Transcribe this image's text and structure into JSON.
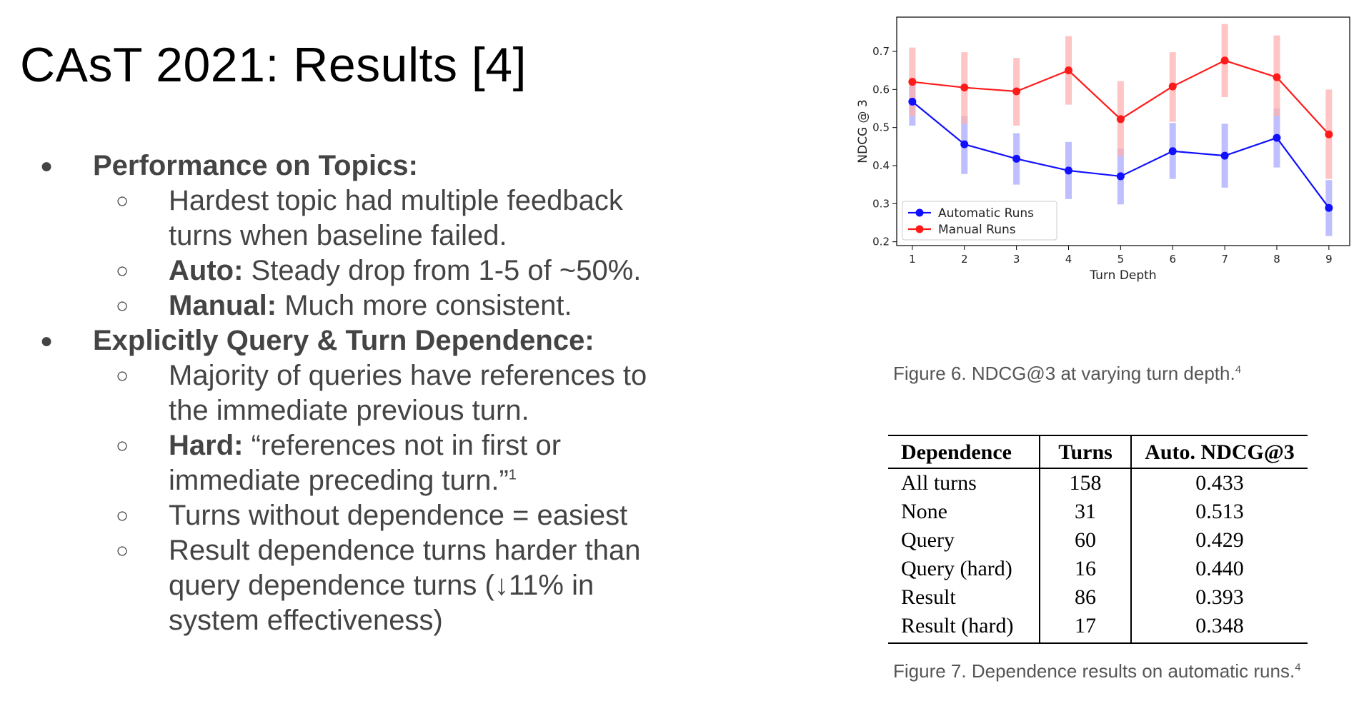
{
  "title": "CAsT 2021: Results [4]",
  "bullets": [
    {
      "heading": "Performance on Topics:",
      "marker": "●",
      "items": [
        {
          "bold": "",
          "text": "Hardest topic had multiple feedback turns when baseline failed.",
          "lines": [
            "Hardest topic had multiple feedback",
            "turns when baseline failed."
          ],
          "footnote": ""
        },
        {
          "bold": "Auto:",
          "text": " Steady drop from 1-5 of ~50%.",
          "lines": [
            " Steady drop from 1-5 of ~50%."
          ],
          "footnote": ""
        },
        {
          "bold": "Manual:",
          "text": " Much more consistent.",
          "lines": [
            " Much more consistent."
          ],
          "footnote": ""
        }
      ]
    },
    {
      "heading": "Explicitly Query & Turn Dependence:",
      "marker": "●",
      "items": [
        {
          "bold": "",
          "text": "Majority of queries have references to the immediate previous turn.",
          "lines": [
            "Majority of queries have references to",
            "the immediate previous turn."
          ],
          "footnote": ""
        },
        {
          "bold": "Hard:",
          "text": " “references not in first or immediate preceding turn.”",
          "lines": [
            " “references not in first or",
            "immediate preceding turn.”"
          ],
          "footnote": "1"
        },
        {
          "bold": "",
          "text": "Turns without dependence = easiest",
          "lines": [
            "Turns without dependence = easiest"
          ],
          "footnote": ""
        },
        {
          "bold": "",
          "text": "Result dependence turns harder than query dependence turns (↓11% in system effectiveness)",
          "lines": [
            "Result dependence turns harder than",
            "query dependence turns (↓11% in",
            "system effectiveness)"
          ],
          "footnote": ""
        }
      ]
    }
  ],
  "sub_marker": "○",
  "chart_data": {
    "type": "line",
    "x": [
      1,
      2,
      3,
      4,
      5,
      6,
      7,
      8,
      9
    ],
    "xlabel": "Turn Depth",
    "ylabel": "NDCG @ 3",
    "xlim": [
      0.7,
      9.4
    ],
    "ylim": [
      0.19,
      0.79
    ],
    "yticks": [
      0.2,
      0.3,
      0.4,
      0.5,
      0.6,
      0.7
    ],
    "ytick_labels": [
      "0.2",
      "0.3",
      "0.4",
      "0.5",
      "0.6",
      "0.7"
    ],
    "xticks": [
      1,
      2,
      3,
      4,
      5,
      6,
      7,
      8,
      9
    ],
    "xtick_labels": [
      "1",
      "2",
      "3",
      "4",
      "5",
      "6",
      "7",
      "8",
      "9"
    ],
    "grid": false,
    "legend_position": "bottom-left",
    "series": [
      {
        "name": "Automatic Runs",
        "color": "#1010ff",
        "error_color": "#aaaaff",
        "values": [
          0.568,
          0.456,
          0.418,
          0.387,
          0.372,
          0.438,
          0.426,
          0.473,
          0.289
        ],
        "error_low": [
          0.505,
          0.378,
          0.35,
          0.312,
          0.298,
          0.365,
          0.342,
          0.395,
          0.215
        ],
        "error_high": [
          0.63,
          0.53,
          0.485,
          0.462,
          0.445,
          0.512,
          0.51,
          0.55,
          0.362
        ]
      },
      {
        "name": "Manual Runs",
        "color": "#ff1a1a",
        "error_color": "#ffb0b0",
        "values": [
          0.62,
          0.605,
          0.595,
          0.65,
          0.522,
          0.608,
          0.676,
          0.632,
          0.482
        ],
        "error_low": [
          0.53,
          0.51,
          0.505,
          0.56,
          0.425,
          0.515,
          0.58,
          0.53,
          0.365
        ],
        "error_high": [
          0.71,
          0.698,
          0.683,
          0.74,
          0.622,
          0.698,
          0.772,
          0.742,
          0.6
        ]
      }
    ]
  },
  "fig6_caption": {
    "text": "Figure 6. NDCG@3 at varying turn depth.",
    "sup": "4"
  },
  "table": {
    "headers": [
      "Dependence",
      "Turns",
      "Auto. NDCG@3"
    ],
    "rows": [
      [
        "All turns",
        "158",
        "0.433"
      ],
      [
        "None",
        "31",
        "0.513"
      ],
      [
        "Query",
        "60",
        "0.429"
      ],
      [
        "Query (hard)",
        "16",
        "0.440"
      ],
      [
        "Result",
        "86",
        "0.393"
      ],
      [
        "Result (hard)",
        "17",
        "0.348"
      ]
    ]
  },
  "fig7_caption": {
    "text": "Figure 7. Dependence results on automatic runs.",
    "sup": "4"
  }
}
